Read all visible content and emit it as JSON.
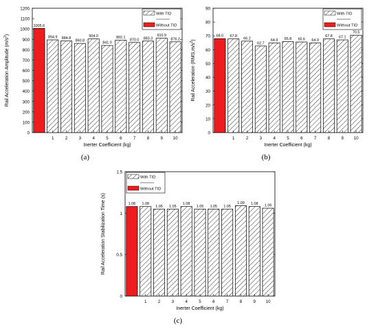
{
  "chart_data": [
    {
      "type": "bar",
      "panel_label": "(a)",
      "ylabel_main": "Rail Acceleration Amplitude (m/s",
      "ylabel_sup": "2",
      "ylabel_end": ")",
      "xlabel": "Inerter Coefficient (kg)",
      "ylim": [
        0,
        1200
      ],
      "yticks": [
        0,
        100,
        200,
        300,
        400,
        500,
        600,
        700,
        800,
        900,
        1000,
        1100,
        1200
      ],
      "reference": {
        "name": "Without TID",
        "value": 1005.6,
        "label": "1005.6"
      },
      "categories": [
        "1",
        "2",
        "3",
        "4",
        "5",
        "6",
        "7",
        "8",
        "9",
        "10"
      ],
      "series": [
        {
          "name": "With TID",
          "values": [
            894.9,
            884.8,
            860.8,
            904.0,
            841.0,
            892.1,
            870.0,
            883.3,
            910.9,
            876.2
          ],
          "labels": [
            "894.9",
            "884.8",
            "860.8",
            "904.0",
            "841.0",
            "892.1",
            "870.0",
            "883.3",
            "910.9",
            "876.2"
          ]
        }
      ],
      "legend_position": "top-right"
    },
    {
      "type": "bar",
      "panel_label": "(b)",
      "ylabel_main": "Rail Acceleration (RMS,m/s",
      "ylabel_sup": "2",
      "ylabel_end": ")",
      "xlabel": "Inerter Coefficient (kg)",
      "ylim": [
        0,
        90
      ],
      "yticks": [
        0,
        10,
        20,
        30,
        40,
        50,
        60,
        70,
        80,
        90
      ],
      "reference": {
        "name": "Without TID",
        "value": 68.0,
        "label": "68.0"
      },
      "categories": [
        "1",
        "2",
        "3",
        "4",
        "5",
        "6",
        "7",
        "8",
        "9",
        "10"
      ],
      "series": [
        {
          "name": "With TID",
          "values": [
            67.8,
            66.2,
            62.7,
            64.9,
            65.8,
            65.6,
            64.9,
            67.8,
            67.1,
            70.5
          ],
          "labels": [
            "67.8",
            "66.2",
            "62.7",
            "64.9",
            "65.8",
            "65.6",
            "64.9",
            "67.8",
            "67.1",
            "70.5"
          ]
        }
      ],
      "legend_position": "top-right"
    },
    {
      "type": "bar",
      "panel_label": "(c)",
      "ylabel_main": "Rail Acceleration Stabilization Time (s)",
      "ylabel_sup": "",
      "ylabel_end": "",
      "xlabel": "Inerter Coefficient (kg)",
      "ylim": [
        0,
        1.5
      ],
      "yticks": [
        0,
        0.5,
        1,
        1.5
      ],
      "reference": {
        "name": "Without TID",
        "value": 1.08,
        "label": "1.08"
      },
      "categories": [
        "1",
        "2",
        "3",
        "4",
        "5",
        "6",
        "7",
        "8",
        "9",
        "10"
      ],
      "series": [
        {
          "name": "With TID",
          "values": [
            1.08,
            1.05,
            1.05,
            1.08,
            1.05,
            1.05,
            1.05,
            1.09,
            1.08,
            1.06
          ],
          "labels": [
            "1.08",
            "1.05",
            "1.05",
            "1.08",
            "1.05",
            "1.05",
            "1.05",
            "1.09",
            "1.08",
            "1.06"
          ]
        }
      ],
      "legend_position": "top-left"
    }
  ],
  "colors": {
    "reference_bar": "#ee1c1c",
    "hatch_bar_fill": "#ffffff",
    "axis": "#000000"
  }
}
